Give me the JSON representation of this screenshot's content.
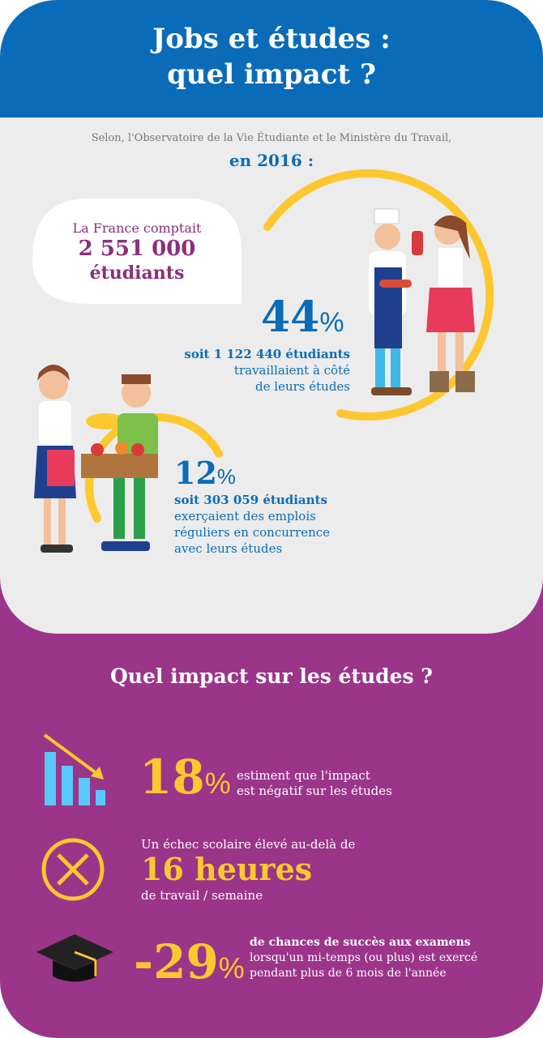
{
  "header": {
    "title": [
      "Jobs et études :",
      "quel impact ?"
    ]
  },
  "intro": {
    "source": "Selon, l'Observatoire de la Vie Étudiante et le Ministère du Travail,",
    "year": "en 2016 :"
  },
  "bubble": {
    "lead": "La France comptait",
    "number": "2 551 000",
    "unit": "étudiants"
  },
  "stat1": {
    "value": "44",
    "unit": "%",
    "lines": [
      "soit 1 122 440 étudiants",
      "travaillaient à côté",
      "de leurs études"
    ]
  },
  "stat2": {
    "value": "12",
    "unit": "%",
    "lines": [
      "soit 303 059 étudiants",
      "exerçaient des emplois",
      "réguliers en concurrence",
      "avec leurs études"
    ]
  },
  "impact": {
    "title": "Quel impact sur les études ?",
    "items": [
      {
        "value": "18",
        "unit": "%",
        "lines": [
          "estiment que l'impact",
          "est négatif sur les études"
        ]
      },
      {
        "before": "Un échec scolaire élevé au-delà de",
        "value": "16 heures",
        "after": "de travail / semaine"
      },
      {
        "value": "-29",
        "unit": "%",
        "lines": [
          "de chances de succès aux examens",
          "lorsqu'un mi-temps (ou plus) est exercé",
          "pendant plus de 6 mois de l'année"
        ]
      }
    ]
  }
}
